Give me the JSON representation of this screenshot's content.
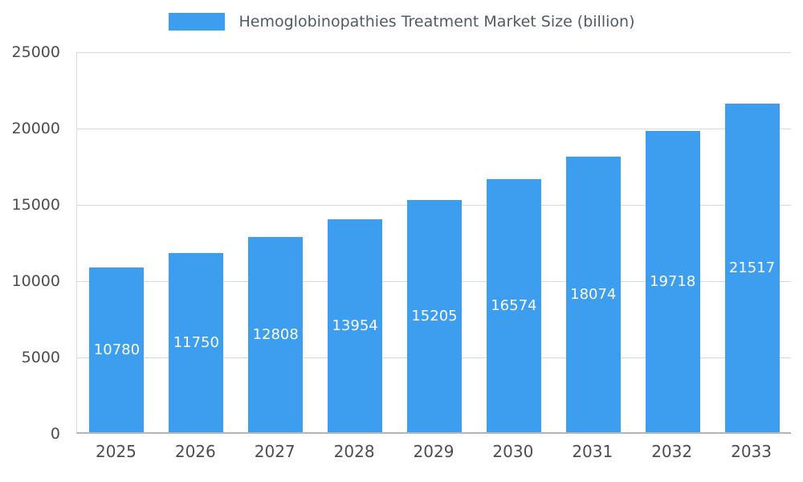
{
  "legend": {
    "label": "Hemoglobinopathies Treatment Market Size (billion)"
  },
  "chart_data": {
    "type": "bar",
    "title": "Hemoglobinopathies Treatment Market Size (billion)",
    "categories": [
      "2025",
      "2026",
      "2027",
      "2028",
      "2029",
      "2030",
      "2031",
      "2032",
      "2033"
    ],
    "values": [
      10780,
      11750,
      12808,
      13954,
      15205,
      16574,
      18074,
      19718,
      21517
    ],
    "xlabel": "",
    "ylabel": "",
    "ylim": [
      0,
      25000
    ],
    "yticks": [
      0,
      5000,
      10000,
      15000,
      20000,
      25000
    ],
    "grid": true,
    "legend_position": "top",
    "bar_color": "#3d9ef0",
    "value_label_color": "#ffffff",
    "axis_text_color": "#4d4d4d",
    "gridline_color": "#d9d9d9"
  }
}
